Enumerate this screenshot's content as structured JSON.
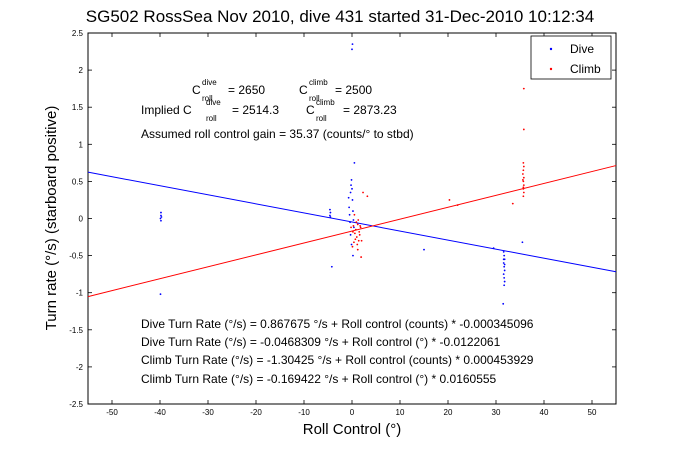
{
  "chart_data": {
    "type": "scatter",
    "title": "SG502 RossSea Nov 2010, dive 431 started 31-Dec-2010 10:12:34",
    "xlabel": "Roll Control (°)",
    "ylabel": "Turn rate (°/s) (starboard positive)",
    "xlim": [
      -55,
      55
    ],
    "ylim": [
      -2.5,
      2.5
    ],
    "xticks": [
      -50,
      -40,
      -30,
      -20,
      -10,
      0,
      10,
      20,
      30,
      40,
      50
    ],
    "yticks": [
      -2.5,
      -2,
      -1.5,
      -1,
      -0.5,
      0,
      0.5,
      1,
      1.5,
      2,
      2.5
    ],
    "grid": false,
    "legend_position": "top-right",
    "series": [
      {
        "name": "Dive",
        "color": "#0000ff",
        "marker": "point",
        "points": [
          [
            -39.8,
            0.08
          ],
          [
            -39.8,
            0.04
          ],
          [
            -39.7,
            0.02
          ],
          [
            -39.9,
            0.0
          ],
          [
            -39.8,
            -0.03
          ],
          [
            -39.9,
            -1.02
          ],
          [
            -4.6,
            0.12
          ],
          [
            -4.5,
            0.08
          ],
          [
            -4.6,
            0.04
          ],
          [
            -4.5,
            0.02
          ],
          [
            -4.2,
            -0.65
          ],
          [
            -0.7,
            0.28
          ],
          [
            -0.6,
            0.15
          ],
          [
            -0.5,
            0.05
          ],
          [
            -0.4,
            -0.05
          ],
          [
            -0.3,
            0.35
          ],
          [
            -0.2,
            0.45
          ],
          [
            -0.1,
            0.52
          ],
          [
            0.0,
            0.4
          ],
          [
            0.1,
            0.25
          ],
          [
            0.2,
            0.1
          ],
          [
            0.3,
            -0.02
          ],
          [
            0.4,
            -0.12
          ],
          [
            0.0,
            2.28
          ],
          [
            0.1,
            2.35
          ],
          [
            0.5,
            0.75
          ],
          [
            -0.3,
            -0.22
          ],
          [
            -0.1,
            -0.35
          ],
          [
            0.2,
            -0.5
          ],
          [
            31.6,
            -0.45
          ],
          [
            31.7,
            -0.5
          ],
          [
            31.8,
            -0.55
          ],
          [
            31.6,
            -0.6
          ],
          [
            31.7,
            -0.65
          ],
          [
            31.8,
            -0.7
          ],
          [
            31.6,
            -0.75
          ],
          [
            31.7,
            -0.8
          ],
          [
            31.8,
            -0.85
          ],
          [
            31.7,
            -0.9
          ],
          [
            31.6,
            -0.55
          ],
          [
            31.8,
            -0.62
          ],
          [
            31.5,
            -1.15
          ],
          [
            29.5,
            -0.4
          ],
          [
            15.0,
            -0.42
          ],
          [
            35.5,
            -0.32
          ]
        ],
        "fit_line": {
          "label": "Dive Turn Rate (°/s) = -0.0468309 °/s + Roll control (°) * -0.0122061",
          "intercept": -0.0468309,
          "slope": -0.0122061
        }
      },
      {
        "name": "Climb",
        "color": "#ff0000",
        "marker": "point",
        "points": [
          [
            0.3,
            -0.1
          ],
          [
            0.6,
            -0.2
          ],
          [
            0.8,
            -0.15
          ],
          [
            1.0,
            -0.25
          ],
          [
            1.2,
            -0.08
          ],
          [
            1.4,
            -0.3
          ],
          [
            0.5,
            0.05
          ],
          [
            0.9,
            -0.05
          ],
          [
            1.1,
            -0.35
          ],
          [
            1.5,
            -0.18
          ],
          [
            1.7,
            -0.1
          ],
          [
            0.7,
            -0.28
          ],
          [
            0.2,
            -0.18
          ],
          [
            1.3,
            -0.02
          ],
          [
            0.4,
            -0.32
          ],
          [
            1.6,
            -0.22
          ],
          [
            1.8,
            -0.12
          ],
          [
            2.0,
            -0.3
          ],
          [
            1.9,
            -0.52
          ],
          [
            1.2,
            -0.42
          ],
          [
            0.1,
            -0.38
          ],
          [
            -0.2,
            -0.12
          ],
          [
            2.3,
            0.35
          ],
          [
            3.2,
            0.3
          ],
          [
            35.7,
            0.3
          ],
          [
            35.8,
            0.35
          ],
          [
            35.7,
            0.4
          ],
          [
            35.8,
            0.45
          ],
          [
            35.7,
            0.5
          ],
          [
            35.8,
            0.55
          ],
          [
            35.6,
            0.6
          ],
          [
            35.7,
            0.65
          ],
          [
            35.8,
            0.7
          ],
          [
            35.7,
            0.75
          ],
          [
            35.7,
            0.42
          ],
          [
            35.6,
            0.52
          ],
          [
            35.8,
            1.2
          ],
          [
            35.8,
            1.75
          ],
          [
            20.3,
            0.25
          ],
          [
            33.5,
            0.2
          ],
          [
            22.0,
            0.18
          ]
        ],
        "fit_line": {
          "label": "Climb Turn Rate (°/s) = -0.169422 °/s + Roll control (°) * 0.0160555",
          "intercept": -0.169422,
          "slope": 0.0160555
        }
      }
    ],
    "annotations": {
      "c_dive_base": "C",
      "c_dive_sup": "dive",
      "c_dive_sub": "roll",
      "c_dive_val": "= 2650",
      "c_climb_base": "C",
      "c_climb_sup": "climb",
      "c_climb_sub": "roll",
      "c_climb_val": "= 2500",
      "implied_prefix": "Implied C",
      "implied_dive_sup": "dive",
      "implied_dive_sub": "roll",
      "implied_dive_val": "= 2514.3",
      "implied_climb_base": "C",
      "implied_climb_sup": "climb",
      "implied_climb_sub": "roll",
      "implied_climb_val": "= 2873.23",
      "gain": "Assumed roll control gain = 35.37 (counts/° to stbd)",
      "eq1": "Dive Turn Rate (°/s) = 0.867675 °/s + Roll control (counts) * -0.000345096",
      "eq2": "Dive Turn Rate (°/s) = -0.0468309 °/s + Roll control (°) * -0.0122061",
      "eq3": "Climb Turn Rate (°/s) = -1.30425 °/s + Roll control (counts) * 0.000453929",
      "eq4": "Climb Turn Rate (°/s) = -0.169422 °/s + Roll control (°) * 0.0160555"
    }
  }
}
